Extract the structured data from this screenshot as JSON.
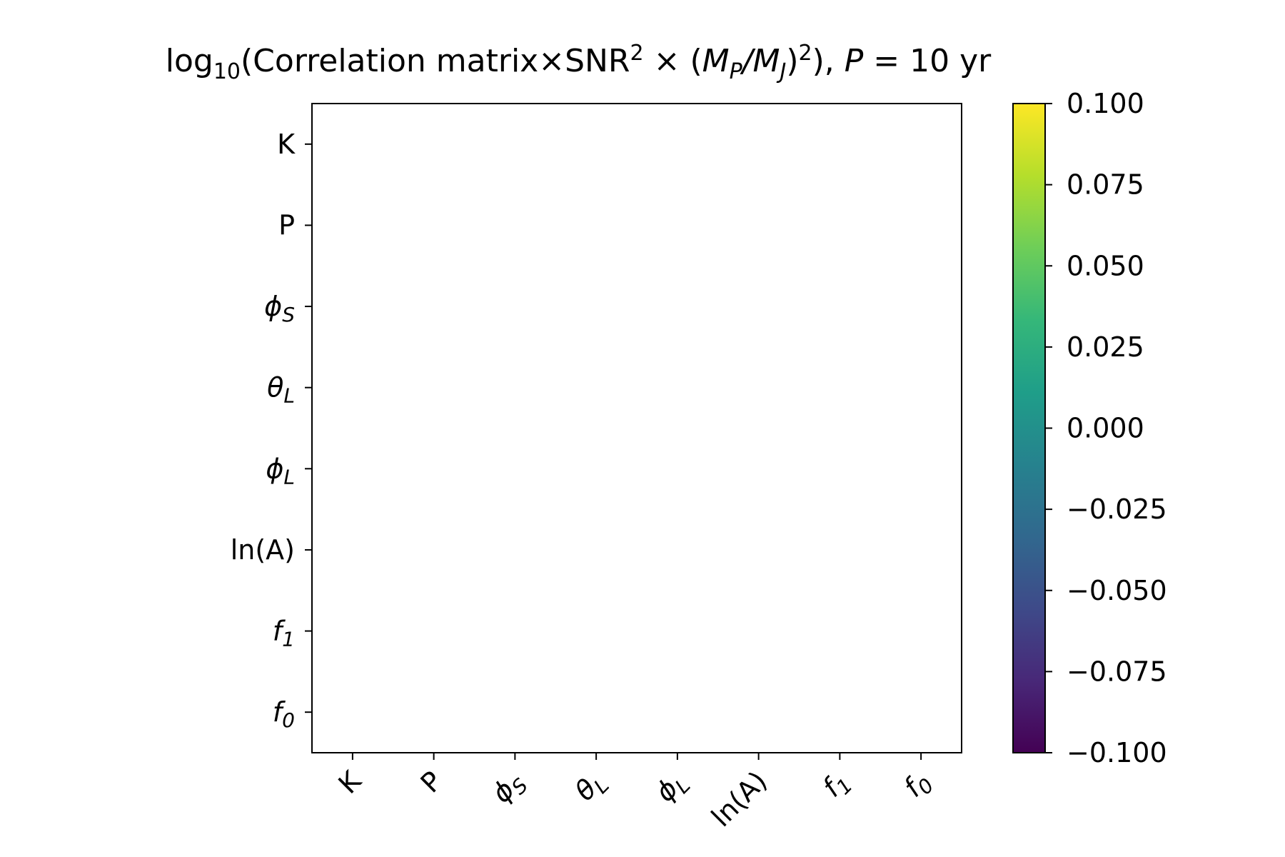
{
  "chart_data": {
    "type": "heatmap",
    "title": {
      "prefix": "log",
      "prefix_sub": "10",
      "main": "(Correlation matrix×SNR",
      "snr_sup": "2",
      "times": " × (",
      "mp": "M",
      "mp_sub": "P",
      "slash": "/",
      "mj": "M",
      "mj_sub": "J",
      "close": ")",
      "close_sup": "2",
      "close2": "), ",
      "period_var": "P",
      "period_eq": " = 10 yr"
    },
    "row_labels": [
      {
        "main": "K",
        "sub": "",
        "italic": false
      },
      {
        "main": "P",
        "sub": "",
        "italic": false
      },
      {
        "main": "ϕ",
        "sub": "S",
        "italic": true
      },
      {
        "main": "θ",
        "sub": "L",
        "italic": true
      },
      {
        "main": "ϕ",
        "sub": "L",
        "italic": true
      },
      {
        "main": "ln(A)",
        "sub": "",
        "italic": false
      },
      {
        "main": "f",
        "sub": "1",
        "italic": true
      },
      {
        "main": "f",
        "sub": "0",
        "italic": true
      }
    ],
    "col_labels": [
      {
        "main": "K",
        "sub": "",
        "italic": false
      },
      {
        "main": "P",
        "sub": "",
        "italic": false
      },
      {
        "main": "ϕ",
        "sub": "S",
        "italic": true
      },
      {
        "main": "θ",
        "sub": "L",
        "italic": true
      },
      {
        "main": "ϕ",
        "sub": "L",
        "italic": true
      },
      {
        "main": "ln(A)",
        "sub": "",
        "italic": false
      },
      {
        "main": "f",
        "sub": "1",
        "italic": true
      },
      {
        "main": "f",
        "sub": "0",
        "italic": true
      }
    ],
    "values": null,
    "colorbar": {
      "colormap": "viridis",
      "colors": [
        "#440154",
        "#482878",
        "#3e4a89",
        "#31688e",
        "#26828e",
        "#1f9e89",
        "#35b779",
        "#6ece58",
        "#b5de2b",
        "#fde725"
      ],
      "range": [
        -0.1,
        0.1
      ],
      "ticks": [
        "0.100",
        "0.075",
        "0.050",
        "0.025",
        "0.000",
        "−0.025",
        "−0.050",
        "−0.075",
        "−0.100"
      ]
    },
    "grid": false,
    "legend": "none"
  }
}
